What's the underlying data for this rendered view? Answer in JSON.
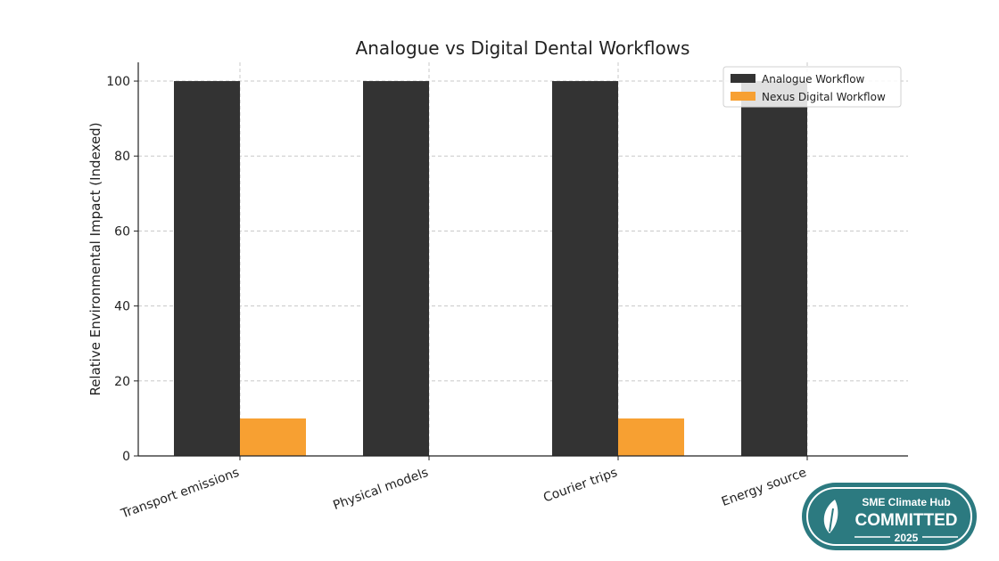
{
  "chart_data": {
    "type": "bar",
    "title": "Analogue vs Digital Dental Workflows",
    "xlabel": "",
    "ylabel": "Relative Environmental Impact (Indexed)",
    "categories": [
      "Transport emissions",
      "Physical models",
      "Courier trips",
      "Energy source"
    ],
    "series": [
      {
        "name": "Analogue Workflow",
        "values": [
          100,
          100,
          100,
          100
        ],
        "color": "#333333"
      },
      {
        "name": "Nexus Digital Workflow",
        "values": [
          10,
          0,
          10,
          0
        ],
        "color": "#f7a032"
      }
    ],
    "ylim": [
      0,
      105
    ],
    "yticks": [
      0,
      20,
      40,
      60,
      80,
      100
    ],
    "grid": true,
    "legend_position": "top-right"
  },
  "badge": {
    "line1": "SME Climate Hub",
    "line2": "COMMITTED",
    "year": "2025",
    "colors": {
      "outer": "#2c7a80",
      "inner": "#2f8d91",
      "text": "#ffffff"
    },
    "icon": "leaf-icon"
  }
}
